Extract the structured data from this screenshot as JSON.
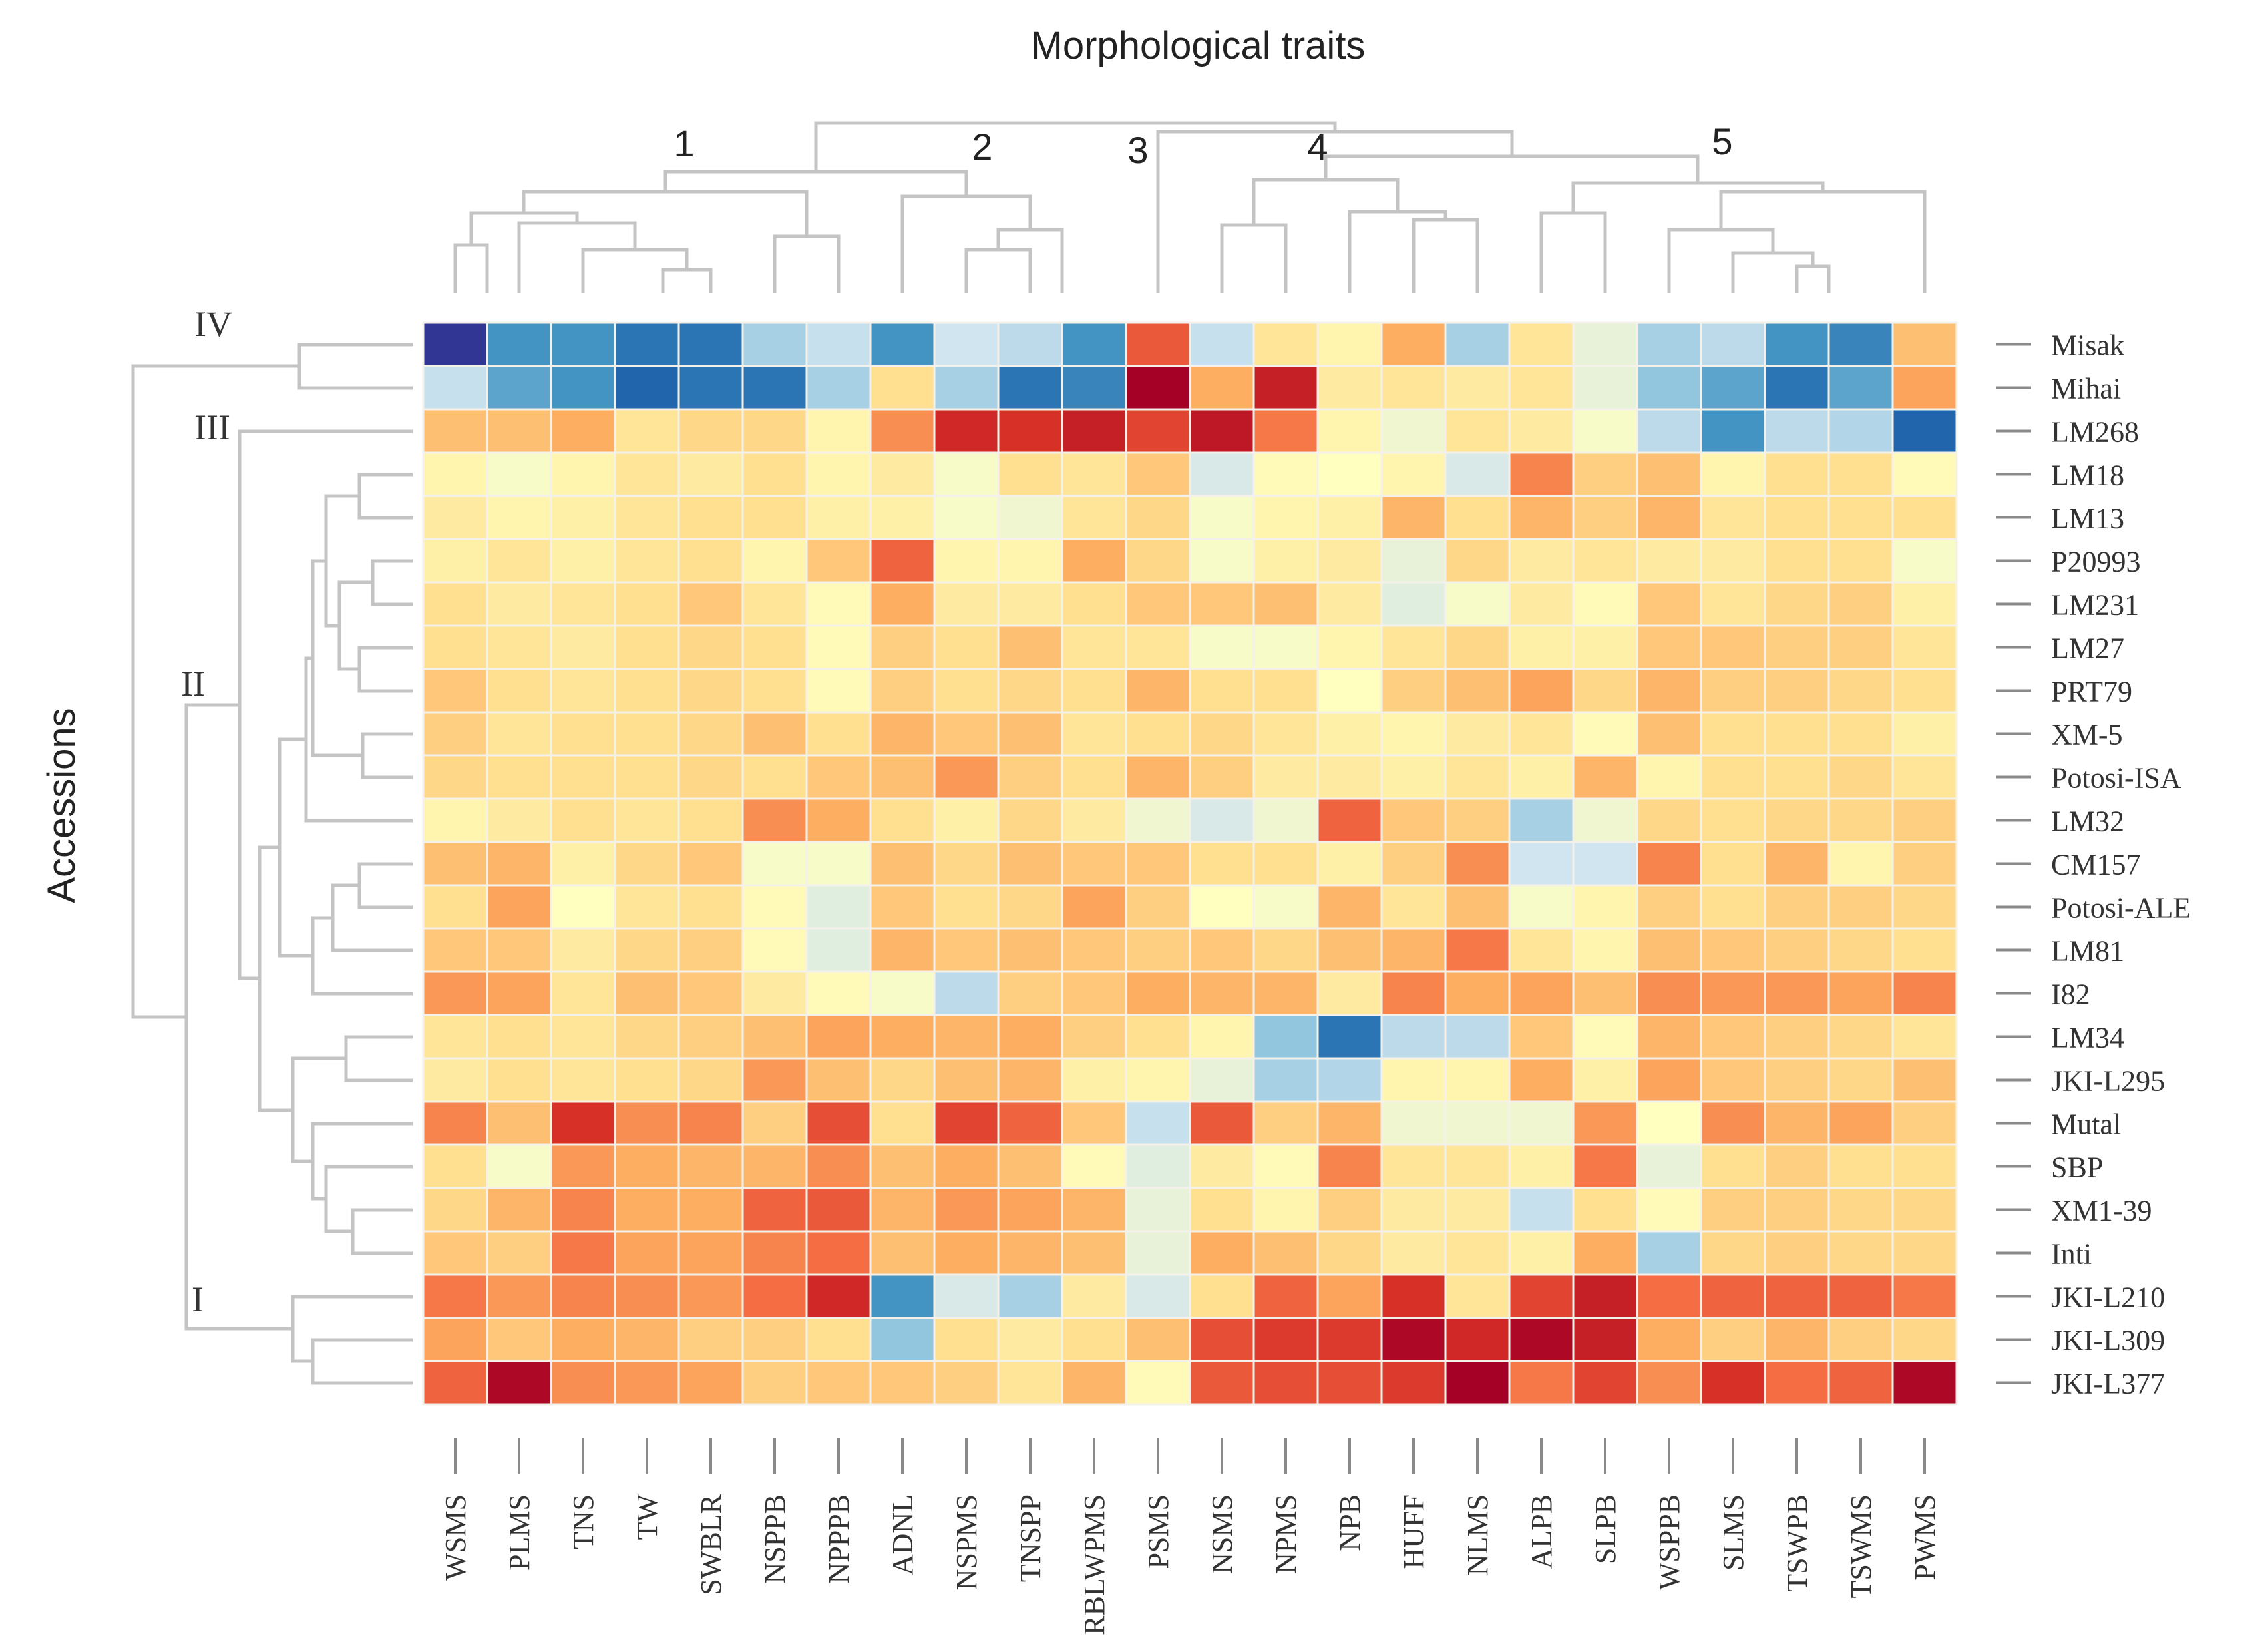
{
  "chart_data": {
    "type": "heatmap",
    "title": "Morphological traits",
    "ylabel": "Accessions",
    "columns": [
      "WSMS",
      "PLMS",
      "TNS",
      "TW",
      "SWBLR",
      "NSPPB",
      "NPPPB",
      "ADNL",
      "NSPMS",
      "TNSPP",
      "RBLWPMS",
      "PSMS",
      "NSMS",
      "NPMS",
      "NPB",
      "HUFF",
      "NLMS",
      "ALPB",
      "SLPB",
      "WSPPB",
      "SLMS",
      "TSWPB",
      "TSWMS",
      "PWMS"
    ],
    "rows": [
      "Misak",
      "Mihai",
      "LM268",
      "LM18",
      "LM13",
      "P20993",
      "LM231",
      "LM27",
      "PRT79",
      "XM-5",
      "Potosi-ISA",
      "LM32",
      "CM157",
      "Potosi-ALE",
      "LM81",
      "I82",
      "LM34",
      "JKI-L295",
      "Mutal",
      "SBP",
      "XM1-39",
      "Inti",
      "JKI-L210",
      "JKI-L309",
      "JKI-L377"
    ],
    "column_clusters": [
      "1",
      "2",
      "3",
      "4",
      "5"
    ],
    "row_clusters": [
      "IV",
      "III",
      "II",
      "I"
    ],
    "color_scale": [
      "#313695",
      "#2166ac",
      "#4393c3",
      "#92c5de",
      "#d1e5f0",
      "#ffffbf",
      "#fee090",
      "#fdae61",
      "#f46d43",
      "#d73027",
      "#a50026"
    ],
    "value_range": [
      -3,
      3
    ],
    "values": [
      [
        -3.0,
        -1.8,
        -1.8,
        -2.2,
        -2.2,
        -1.0,
        -0.7,
        -1.8,
        -0.6,
        -0.8,
        -1.8,
        2.0,
        -0.7,
        0.5,
        0.2,
        1.2,
        -1.0,
        0.5,
        -0.3,
        -1.0,
        -0.8,
        -1.8,
        -2.0,
        1.0
      ],
      [
        -0.7,
        -1.6,
        -1.8,
        -2.4,
        -2.2,
        -2.2,
        -1.0,
        0.6,
        -1.0,
        -2.2,
        -2.0,
        3.0,
        1.2,
        2.6,
        0.4,
        0.5,
        0.4,
        0.5,
        -0.3,
        -1.2,
        -1.6,
        -2.2,
        -1.6,
        1.3
      ],
      [
        1.0,
        1.0,
        1.2,
        0.5,
        0.7,
        0.7,
        0.2,
        1.5,
        2.5,
        2.4,
        2.6,
        2.2,
        2.7,
        1.7,
        0.2,
        -0.2,
        0.5,
        0.4,
        -0.1,
        -0.8,
        -1.8,
        -0.8,
        -0.9,
        -2.4
      ],
      [
        0.2,
        -0.1,
        0.2,
        0.5,
        0.4,
        0.6,
        0.2,
        0.4,
        -0.1,
        0.6,
        0.5,
        0.9,
        -0.5,
        0.1,
        0.0,
        0.2,
        -0.5,
        1.6,
        0.8,
        1.0,
        0.2,
        0.6,
        0.6,
        0.1
      ],
      [
        0.4,
        0.2,
        0.3,
        0.5,
        0.6,
        0.6,
        0.3,
        0.3,
        -0.1,
        -0.2,
        0.5,
        0.7,
        -0.1,
        0.2,
        0.3,
        1.1,
        0.6,
        1.1,
        0.8,
        1.1,
        0.5,
        0.6,
        0.6,
        0.6
      ],
      [
        0.3,
        0.5,
        0.3,
        0.5,
        0.6,
        0.2,
        0.9,
        1.9,
        0.2,
        0.2,
        1.2,
        0.7,
        -0.1,
        0.3,
        0.4,
        -0.3,
        0.7,
        0.4,
        0.5,
        0.4,
        0.4,
        0.6,
        0.6,
        -0.1
      ],
      [
        0.6,
        0.4,
        0.5,
        0.6,
        0.9,
        0.5,
        0.1,
        1.2,
        0.4,
        0.4,
        0.6,
        0.9,
        0.9,
        1.0,
        0.4,
        -0.4,
        -0.1,
        0.4,
        0.1,
        0.9,
        0.5,
        0.7,
        0.8,
        0.3
      ],
      [
        0.6,
        0.5,
        0.4,
        0.6,
        0.7,
        0.6,
        0.1,
        0.8,
        0.6,
        1.0,
        0.5,
        0.5,
        -0.1,
        -0.1,
        0.2,
        0.5,
        0.7,
        0.3,
        0.3,
        0.9,
        0.9,
        0.8,
        0.8,
        0.5
      ],
      [
        0.9,
        0.6,
        0.5,
        0.6,
        0.7,
        0.6,
        0.1,
        0.8,
        0.6,
        0.7,
        0.6,
        1.1,
        0.6,
        0.6,
        0.0,
        0.8,
        1.0,
        1.3,
        0.7,
        1.1,
        0.8,
        0.8,
        0.7,
        0.6
      ],
      [
        0.8,
        0.5,
        0.6,
        0.6,
        0.7,
        1.0,
        0.6,
        1.1,
        0.9,
        1.0,
        0.5,
        0.6,
        0.7,
        0.5,
        0.3,
        0.2,
        0.4,
        0.5,
        0.1,
        1.0,
        0.6,
        0.6,
        0.6,
        0.3
      ],
      [
        0.7,
        0.6,
        0.6,
        0.6,
        0.7,
        0.6,
        0.9,
        1.0,
        1.4,
        0.8,
        0.6,
        1.1,
        0.8,
        0.4,
        0.4,
        0.3,
        0.5,
        0.3,
        1.1,
        0.2,
        0.6,
        0.6,
        0.7,
        0.5
      ],
      [
        0.2,
        0.4,
        0.6,
        0.5,
        0.6,
        1.5,
        1.2,
        0.6,
        0.3,
        0.7,
        0.4,
        -0.2,
        -0.5,
        -0.2,
        1.9,
        0.9,
        0.8,
        -1.0,
        -0.2,
        0.7,
        0.6,
        0.7,
        0.7,
        0.8
      ],
      [
        1.0,
        1.1,
        0.3,
        0.7,
        0.9,
        -0.1,
        -0.1,
        1.0,
        0.7,
        1.0,
        0.9,
        0.9,
        0.6,
        0.6,
        0.3,
        0.8,
        1.5,
        -0.6,
        -0.6,
        1.6,
        0.6,
        1.1,
        0.2,
        0.8
      ],
      [
        0.6,
        1.3,
        0.0,
        0.5,
        0.6,
        0.1,
        -0.4,
        0.9,
        0.6,
        0.7,
        1.3,
        0.8,
        0.0,
        -0.1,
        1.1,
        0.5,
        1.0,
        -0.1,
        0.2,
        0.8,
        0.6,
        0.8,
        0.8,
        0.7
      ],
      [
        0.9,
        0.9,
        0.4,
        0.7,
        0.8,
        0.1,
        -0.4,
        1.1,
        0.9,
        1.0,
        0.9,
        0.8,
        0.9,
        0.7,
        1.0,
        1.1,
        1.7,
        0.5,
        0.2,
        1.0,
        0.9,
        0.8,
        0.7,
        0.6
      ],
      [
        1.4,
        1.3,
        0.5,
        1.0,
        0.9,
        0.4,
        0.1,
        -0.1,
        -0.8,
        0.8,
        0.9,
        1.2,
        1.1,
        1.1,
        0.4,
        1.6,
        1.2,
        1.3,
        1.0,
        1.5,
        1.4,
        1.4,
        1.3,
        1.6
      ],
      [
        0.5,
        0.6,
        0.5,
        0.7,
        0.8,
        1.0,
        1.3,
        1.2,
        1.1,
        1.2,
        0.8,
        0.6,
        0.2,
        -1.2,
        -2.2,
        -0.8,
        -0.8,
        0.9,
        0.1,
        1.1,
        0.9,
        0.8,
        0.7,
        0.5
      ],
      [
        0.4,
        0.6,
        0.5,
        0.6,
        0.7,
        1.4,
        1.0,
        0.7,
        1.0,
        1.1,
        0.3,
        0.2,
        -0.3,
        -1.0,
        -0.9,
        0.2,
        0.2,
        1.2,
        0.3,
        1.3,
        0.9,
        0.8,
        0.7,
        1.0
      ],
      [
        1.6,
        1.0,
        2.4,
        1.5,
        1.6,
        0.8,
        2.1,
        0.6,
        2.2,
        1.9,
        0.9,
        -0.7,
        2.0,
        0.8,
        1.1,
        -0.2,
        -0.2,
        -0.2,
        1.4,
        0.0,
        1.5,
        1.1,
        1.3,
        0.8
      ],
      [
        0.6,
        -0.1,
        1.4,
        1.2,
        1.1,
        1.1,
        1.5,
        1.0,
        1.2,
        1.0,
        0.1,
        -0.4,
        0.4,
        0.1,
        1.6,
        0.5,
        0.5,
        0.3,
        1.7,
        -0.3,
        0.6,
        0.8,
        0.6,
        0.6
      ],
      [
        0.7,
        1.1,
        1.6,
        1.2,
        1.2,
        1.9,
        2.0,
        1.1,
        1.4,
        1.3,
        1.1,
        -0.3,
        0.6,
        0.2,
        0.8,
        0.4,
        0.4,
        -0.7,
        0.6,
        0.1,
        0.8,
        0.8,
        0.7,
        0.7
      ],
      [
        0.9,
        0.8,
        1.7,
        1.3,
        1.3,
        1.6,
        1.8,
        1.0,
        1.2,
        1.1,
        1.0,
        -0.3,
        1.2,
        1.0,
        0.7,
        0.4,
        0.5,
        0.3,
        1.2,
        -1.0,
        0.7,
        0.8,
        0.7,
        0.7
      ],
      [
        1.7,
        1.4,
        1.6,
        1.5,
        1.4,
        1.8,
        2.5,
        -1.8,
        -0.5,
        -1.0,
        0.4,
        -0.5,
        0.6,
        1.9,
        1.3,
        2.4,
        0.5,
        2.2,
        2.6,
        1.8,
        1.9,
        1.9,
        1.9,
        1.7
      ],
      [
        1.3,
        0.9,
        1.2,
        1.1,
        0.8,
        0.8,
        0.6,
        -1.2,
        0.6,
        0.4,
        0.6,
        1.0,
        2.1,
        2.3,
        2.3,
        2.9,
        2.5,
        2.9,
        2.6,
        1.2,
        0.8,
        1.1,
        0.8,
        0.7
      ],
      [
        1.9,
        2.9,
        1.5,
        1.4,
        1.3,
        0.8,
        0.9,
        0.9,
        0.8,
        0.5,
        1.1,
        0.1,
        2.0,
        2.1,
        2.1,
        2.3,
        3.0,
        1.7,
        2.2,
        1.5,
        2.4,
        1.8,
        1.9,
        2.9
      ]
    ]
  }
}
